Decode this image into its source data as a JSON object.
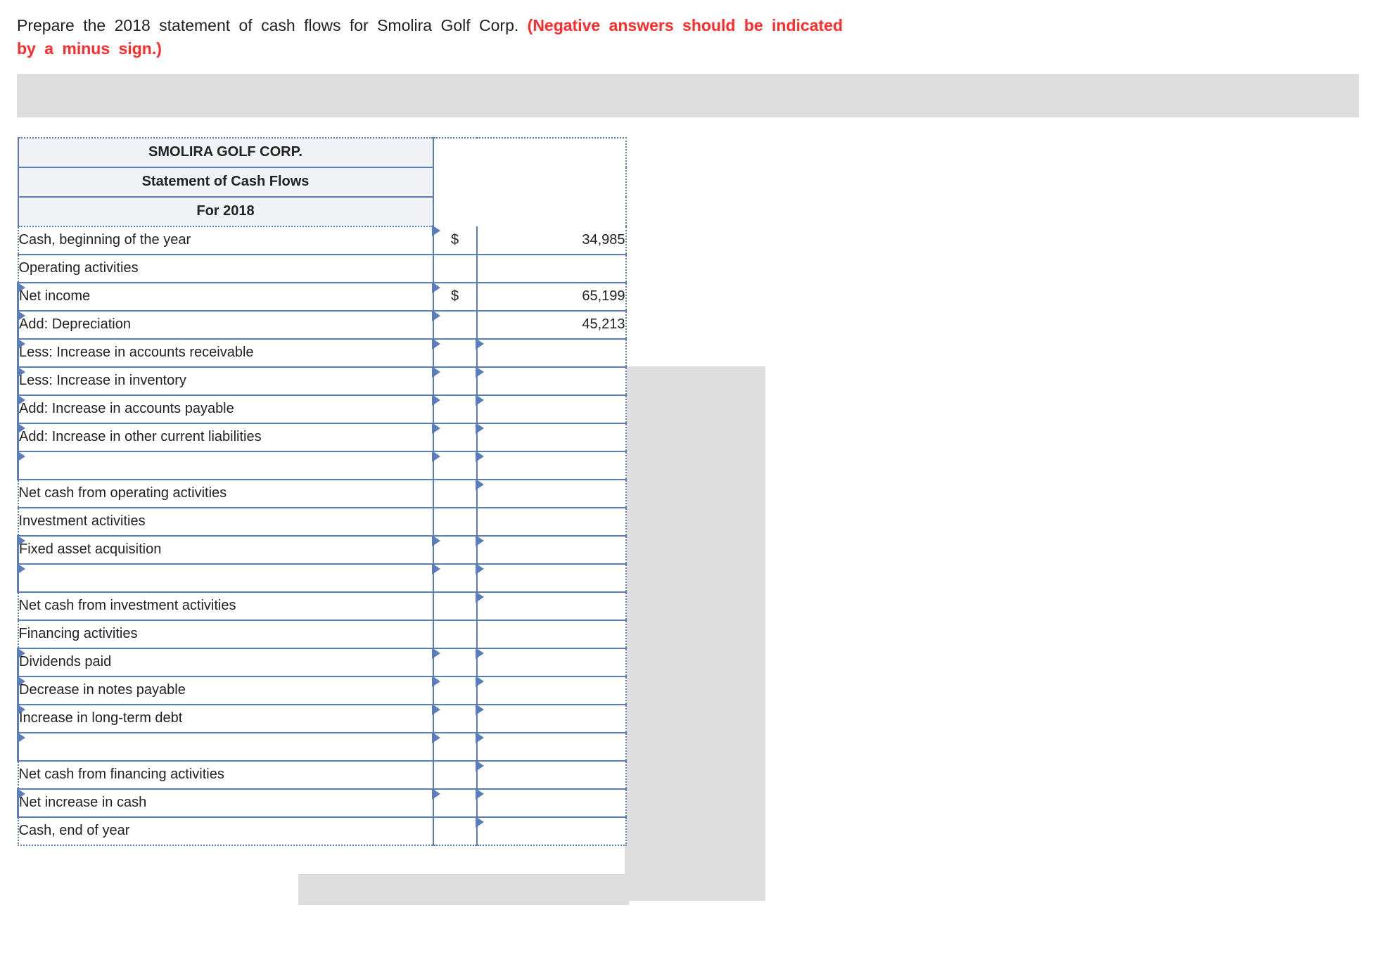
{
  "instruction": {
    "text_part1": "Prepare the 2018 statement of cash flows for Smolira Golf Corp. ",
    "text_red": "(Negative answers should be indicated by a minus sign.)"
  },
  "table": {
    "header1": "SMOLIRA GOLF CORP.",
    "header2": "Statement of Cash Flows",
    "header3": "For 2018",
    "currency": "$",
    "rows": [
      {
        "label": "Cash, beginning of the year",
        "editable": false,
        "sym": "$",
        "val": "34,985",
        "tri_sym": true,
        "tri_val": false
      },
      {
        "label": "Operating activities",
        "editable": false,
        "sym": "",
        "val": "",
        "tri_sym": false,
        "tri_val": false
      },
      {
        "label": "Net income",
        "editable": true,
        "sym": "$",
        "val": "65,199",
        "tri_sym": true,
        "tri_val": false
      },
      {
        "label": "Add: Depreciation",
        "editable": true,
        "sym": "",
        "val": "45,213",
        "tri_sym": true,
        "tri_val": false
      },
      {
        "label": "Less: Increase in accounts receivable",
        "editable": true,
        "sym": "",
        "val": "",
        "tri_sym": true,
        "tri_val": true
      },
      {
        "label": "Less: Increase in inventory",
        "editable": true,
        "sym": "",
        "val": "",
        "tri_sym": true,
        "tri_val": true
      },
      {
        "label": "Add: Increase in accounts payable",
        "editable": true,
        "sym": "",
        "val": "",
        "tri_sym": true,
        "tri_val": true
      },
      {
        "label": "Add: Increase in other current liabilities",
        "editable": true,
        "sym": "",
        "val": "",
        "tri_sym": true,
        "tri_val": true
      },
      {
        "label": "",
        "editable": true,
        "sym": "",
        "val": "",
        "tri_sym": true,
        "tri_val": true
      },
      {
        "label": "Net cash from operating activities",
        "editable": false,
        "sym": "",
        "val": "",
        "tri_sym": false,
        "tri_val": true,
        "val_topline": true
      },
      {
        "label": "Investment activities",
        "editable": false,
        "sym": "",
        "val": "",
        "tri_sym": false,
        "tri_val": false
      },
      {
        "label": "Fixed asset acquisition",
        "editable": true,
        "sym": "",
        "val": "",
        "tri_sym": true,
        "tri_val": true
      },
      {
        "label": "",
        "editable": true,
        "sym": "",
        "val": "",
        "tri_sym": true,
        "tri_val": true
      },
      {
        "label": "Net cash from investment activities",
        "editable": false,
        "sym": "",
        "val": "",
        "tri_sym": false,
        "tri_val": true,
        "val_topline": true
      },
      {
        "label": "Financing activities",
        "editable": false,
        "sym": "",
        "val": "",
        "tri_sym": false,
        "tri_val": false
      },
      {
        "label": "Dividends paid",
        "editable": true,
        "sym": "",
        "val": "",
        "tri_sym": true,
        "tri_val": true
      },
      {
        "label": "Decrease in notes payable",
        "editable": true,
        "sym": "",
        "val": "",
        "tri_sym": true,
        "tri_val": true
      },
      {
        "label": "Increase in long-term debt",
        "editable": true,
        "sym": "",
        "val": "",
        "tri_sym": true,
        "tri_val": true
      },
      {
        "label": "",
        "editable": true,
        "sym": "",
        "val": "",
        "tri_sym": true,
        "tri_val": true
      },
      {
        "label": "Net cash from financing activities",
        "editable": false,
        "sym": "",
        "val": "",
        "tri_sym": false,
        "tri_val": true,
        "val_topline": true
      },
      {
        "label": "Net increase in cash",
        "editable": true,
        "sym": "",
        "val": "",
        "tri_sym": true,
        "tri_val": true
      },
      {
        "label": "Cash, end of year",
        "editable": false,
        "sym": "",
        "val": "",
        "tri_sym": false,
        "tri_val": true
      }
    ]
  },
  "colors": {
    "border_blue": "#5a7eb9",
    "header_bg": "#f1f3f6",
    "gray": "#dedede",
    "red": "#ff2a2a"
  }
}
